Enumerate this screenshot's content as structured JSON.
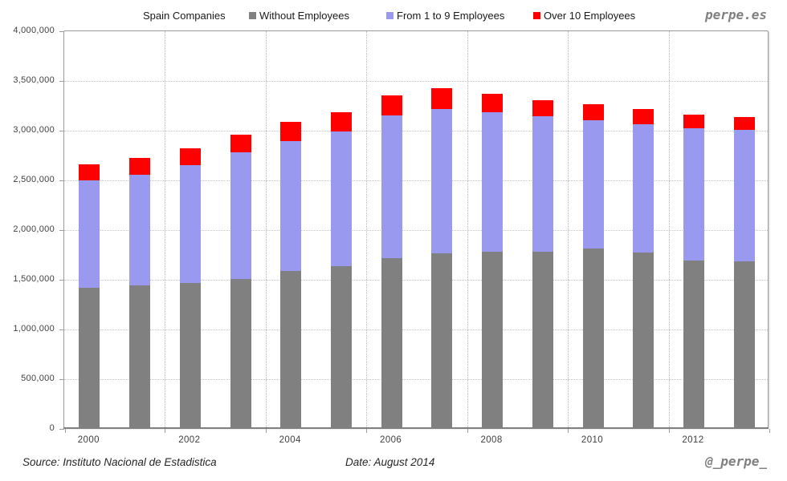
{
  "header": {
    "title": "Spain Companies",
    "watermark": "perpe.es"
  },
  "legend": [
    {
      "label": "Without Employees",
      "color": "#808080"
    },
    {
      "label": "From 1 to 9 Employees",
      "color": "#9999F0"
    },
    {
      "label": "Over 10 Employees",
      "color": "#FF0000"
    }
  ],
  "footer": {
    "source": "Source: Instituto Nacional de Estadistica",
    "date": "Date: August 2014",
    "handle": "@_perpe_"
  },
  "chart_data": {
    "type": "bar",
    "stacked": true,
    "title": "Spain Companies",
    "categories": [
      "2000",
      "2001",
      "2002",
      "2003",
      "2004",
      "2005",
      "2006",
      "2007",
      "2008",
      "2009",
      "2010",
      "2011",
      "2012",
      "2013"
    ],
    "series": [
      {
        "name": "Without Employees",
        "color": "#808080",
        "values": [
          1405000,
          1425000,
          1455000,
          1490000,
          1570000,
          1620000,
          1705000,
          1750000,
          1765000,
          1770000,
          1795000,
          1760000,
          1680000,
          1672000
        ]
      },
      {
        "name": "From 1 to 9 Employees",
        "color": "#9999F0",
        "values": [
          1080000,
          1115000,
          1185000,
          1275000,
          1310000,
          1355000,
          1430000,
          1455000,
          1405000,
          1360000,
          1295000,
          1290000,
          1325000,
          1318000
        ]
      },
      {
        "name": "Over 10 Employees",
        "color": "#FF0000",
        "values": [
          160000,
          170000,
          170000,
          180000,
          190000,
          195000,
          205000,
          210000,
          185000,
          160000,
          160000,
          155000,
          140000,
          130000
        ]
      }
    ],
    "totals": [
      2645000,
      2710000,
      2810000,
      2945000,
      3070000,
      3170000,
      3340000,
      3415000,
      3355000,
      3290000,
      3250000,
      3205000,
      3145000,
      3120000
    ],
    "xlabel": "",
    "ylabel": "",
    "ylim": [
      0,
      4000000
    ],
    "y_tick_step": 500000,
    "y_tick_labels": [
      "0",
      "500,000",
      "1,000,000",
      "1,500,000",
      "2,000,000",
      "2,500,000",
      "3,000,000",
      "3,500,000",
      "4,000,000"
    ],
    "x_tick_labels": [
      "2000",
      "2002",
      "2004",
      "2006",
      "2008",
      "2010",
      "2012"
    ],
    "x_ticks_every": 2,
    "grid": {
      "horizontal": "dotted every 500,000",
      "vertical": "dotted every 2 years"
    },
    "legend_position": "top"
  }
}
